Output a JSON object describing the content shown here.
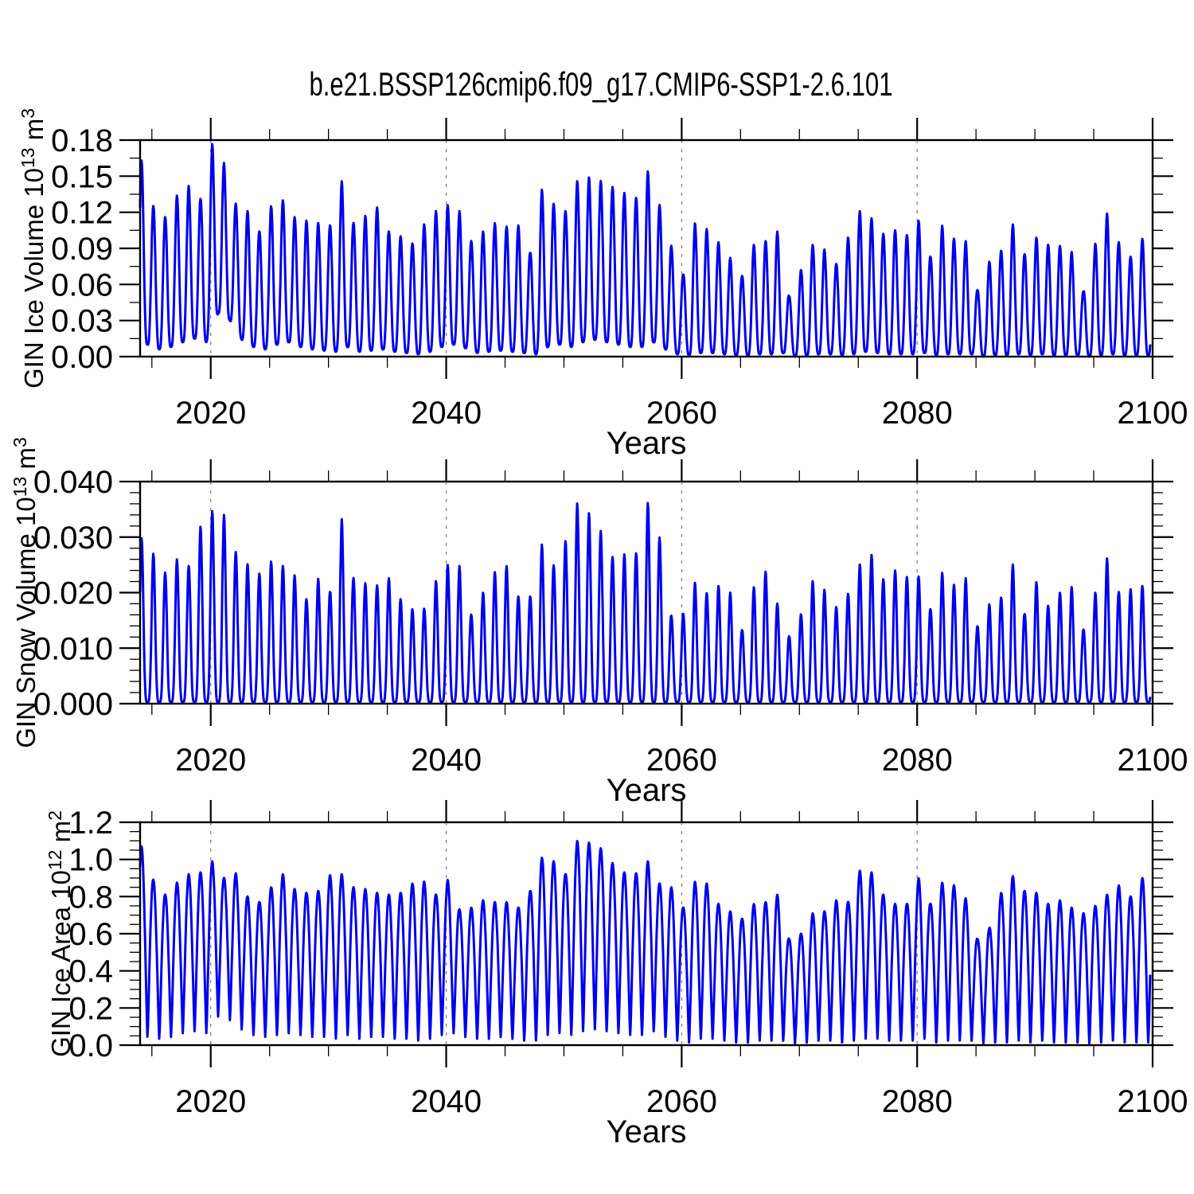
{
  "title": "b.e21.BSSP126cmip6.f09_g17.CMIP6-SSP1-2.6.101",
  "line_color": "#0000ee",
  "grid_color": "#848484",
  "axis_color": "#000000",
  "chart_data": [
    {
      "name": "gin-ice-volume",
      "type": "line",
      "ylabel_parts": [
        {
          "t": "GIN Ice Volume 10"
        },
        {
          "t": "13",
          "sup": true
        },
        {
          "t": " m"
        },
        {
          "t": "3",
          "sup": true
        }
      ],
      "ylabel_text": "GIN Ice Volume 10^13 m^3",
      "xlabel": "Years",
      "xlim": [
        2014,
        2100
      ],
      "ylim": [
        0,
        0.18
      ],
      "ytick_major_step": 0.03,
      "ytick_minor_step": 0.015,
      "ytick_decimals": 2,
      "xtick_major": [
        2020,
        2040,
        2060,
        2080,
        2100
      ],
      "xtick_minor_step": 5,
      "grid_x": [
        2020,
        2040,
        2060,
        2080
      ],
      "legend": "none",
      "start_year": 2014,
      "end_time": 2099.8,
      "season": {
        "peak_frac": 0.13,
        "sharpness": 1.7
      },
      "annual_max": [
        0.163,
        0.125,
        0.116,
        0.134,
        0.142,
        0.131,
        0.177,
        0.161,
        0.127,
        0.121,
        0.104,
        0.125,
        0.13,
        0.116,
        0.113,
        0.111,
        0.109,
        0.146,
        0.111,
        0.117,
        0.124,
        0.104,
        0.1,
        0.094,
        0.11,
        0.121,
        0.126,
        0.121,
        0.096,
        0.104,
        0.111,
        0.108,
        0.109,
        0.086,
        0.139,
        0.127,
        0.121,
        0.146,
        0.149,
        0.146,
        0.141,
        0.136,
        0.132,
        0.154,
        0.126,
        0.092,
        0.068,
        0.111,
        0.106,
        0.095,
        0.082,
        0.067,
        0.093,
        0.096,
        0.104,
        0.05,
        0.072,
        0.093,
        0.089,
        0.077,
        0.099,
        0.121,
        0.115,
        0.102,
        0.105,
        0.101,
        0.113,
        0.083,
        0.109,
        0.098,
        0.096,
        0.055,
        0.079,
        0.088,
        0.11,
        0.085,
        0.099,
        0.093,
        0.092,
        0.087,
        0.054,
        0.094,
        0.119,
        0.095,
        0.083,
        0.098
      ],
      "annual_min": [
        0.01,
        0.006,
        0.008,
        0.012,
        0.015,
        0.012,
        0.036,
        0.03,
        0.014,
        0.008,
        0.006,
        0.01,
        0.012,
        0.008,
        0.006,
        0.005,
        0.004,
        0.008,
        0.004,
        0.005,
        0.006,
        0.004,
        0.003,
        0.002,
        0.004,
        0.008,
        0.01,
        0.007,
        0.003,
        0.004,
        0.005,
        0.004,
        0.003,
        0.002,
        0.008,
        0.01,
        0.008,
        0.012,
        0.014,
        0.012,
        0.01,
        0.008,
        0.008,
        0.012,
        0.006,
        0.002,
        0.001,
        0.003,
        0.003,
        0.002,
        0.001,
        0.001,
        0.002,
        0.002,
        0.003,
        0.0,
        0.001,
        0.002,
        0.002,
        0.001,
        0.002,
        0.004,
        0.003,
        0.002,
        0.002,
        0.002,
        0.003,
        0.001,
        0.002,
        0.002,
        0.002,
        0.0,
        0.001,
        0.001,
        0.002,
        0.001,
        0.002,
        0.001,
        0.001,
        0.001,
        0.0,
        0.001,
        0.002,
        0.001,
        0.001,
        0.001
      ]
    },
    {
      "name": "gin-snow-volume",
      "type": "line",
      "ylabel_parts": [
        {
          "t": "GIN Snow Volume 10"
        },
        {
          "t": "13",
          "sup": true
        },
        {
          "t": " m"
        },
        {
          "t": "3",
          "sup": true
        }
      ],
      "ylabel_text": "GIN Snow Volume 10^13 m^3",
      "xlabel": "Years",
      "xlim": [
        2014,
        2100
      ],
      "ylim": [
        0,
        0.04
      ],
      "ytick_major_step": 0.01,
      "ytick_minor_step": 0.002,
      "ytick_decimals": 3,
      "xtick_major": [
        2020,
        2040,
        2060,
        2080,
        2100
      ],
      "xtick_minor_step": 5,
      "grid_x": [
        2020,
        2040,
        2060,
        2080
      ],
      "legend": "none",
      "start_year": 2014,
      "end_time": 2099.8,
      "season": {
        "peak_frac": 0.13,
        "sharpness": 2.3
      },
      "annual_max": [
        0.0298,
        0.027,
        0.0236,
        0.026,
        0.0248,
        0.0319,
        0.0347,
        0.034,
        0.0273,
        0.0251,
        0.0234,
        0.0256,
        0.0248,
        0.0231,
        0.0188,
        0.0225,
        0.0201,
        0.0333,
        0.0226,
        0.0217,
        0.0213,
        0.0226,
        0.0188,
        0.017,
        0.0171,
        0.0221,
        0.025,
        0.0248,
        0.016,
        0.02,
        0.0237,
        0.0248,
        0.0193,
        0.0193,
        0.0287,
        0.0249,
        0.0293,
        0.0361,
        0.0343,
        0.0311,
        0.0264,
        0.0269,
        0.0271,
        0.0362,
        0.0299,
        0.0158,
        0.0162,
        0.0218,
        0.0199,
        0.0212,
        0.02,
        0.0132,
        0.021,
        0.0238,
        0.018,
        0.0121,
        0.0161,
        0.0221,
        0.0205,
        0.0174,
        0.0198,
        0.0251,
        0.0268,
        0.0224,
        0.024,
        0.0228,
        0.0229,
        0.017,
        0.0236,
        0.0214,
        0.0226,
        0.0139,
        0.0179,
        0.0191,
        0.0251,
        0.0161,
        0.0219,
        0.0176,
        0.02,
        0.021,
        0.0133,
        0.02,
        0.0262,
        0.0201,
        0.0206,
        0.0212
      ],
      "annual_min": 0.0003
    },
    {
      "name": "gin-ice-area",
      "type": "line",
      "ylabel_parts": [
        {
          "t": "GIN Ice Area 10"
        },
        {
          "t": "12",
          "sup": true
        },
        {
          "t": " m"
        },
        {
          "t": "2",
          "sup": true
        }
      ],
      "ylabel_text": "GIN Ice Area 10^12 m^2",
      "xlabel": "Years",
      "xlim": [
        2014,
        2100
      ],
      "ylim": [
        0,
        1.2
      ],
      "ytick_major_step": 0.2,
      "ytick_minor_step": 0.05,
      "ytick_decimals": 1,
      "xtick_major": [
        2020,
        2040,
        2060,
        2080,
        2100
      ],
      "xtick_minor_step": 5,
      "grid_x": [
        2020,
        2040,
        2060,
        2080
      ],
      "legend": "none",
      "start_year": 2014,
      "end_time": 2099.8,
      "season": {
        "peak_frac": 0.13,
        "sharpness": 0.62
      },
      "annual_max": [
        1.07,
        0.89,
        0.81,
        0.875,
        0.92,
        0.93,
        0.99,
        0.9,
        0.925,
        0.8,
        0.77,
        0.85,
        0.92,
        0.84,
        0.82,
        0.83,
        0.915,
        0.92,
        0.85,
        0.84,
        0.82,
        0.81,
        0.82,
        0.87,
        0.88,
        0.81,
        0.89,
        0.73,
        0.74,
        0.78,
        0.77,
        0.77,
        0.74,
        0.83,
        1.01,
        0.99,
        0.92,
        1.1,
        1.09,
        1.06,
        0.98,
        0.93,
        0.925,
        0.99,
        0.87,
        0.85,
        0.74,
        0.88,
        0.87,
        0.76,
        0.72,
        0.68,
        0.76,
        0.77,
        0.81,
        0.57,
        0.6,
        0.71,
        0.72,
        0.78,
        0.77,
        0.94,
        0.93,
        0.81,
        0.76,
        0.76,
        0.9,
        0.76,
        0.875,
        0.86,
        0.79,
        0.57,
        0.63,
        0.82,
        0.91,
        0.83,
        0.82,
        0.76,
        0.78,
        0.74,
        0.71,
        0.75,
        0.81,
        0.86,
        0.8,
        0.9
      ],
      "annual_min": [
        0.04,
        0.03,
        0.04,
        0.06,
        0.07,
        0.06,
        0.15,
        0.13,
        0.08,
        0.05,
        0.04,
        0.05,
        0.06,
        0.05,
        0.04,
        0.04,
        0.03,
        0.05,
        0.03,
        0.04,
        0.04,
        0.03,
        0.03,
        0.02,
        0.03,
        0.05,
        0.06,
        0.04,
        0.03,
        0.03,
        0.04,
        0.03,
        0.02,
        0.02,
        0.05,
        0.06,
        0.05,
        0.07,
        0.08,
        0.07,
        0.06,
        0.05,
        0.05,
        0.07,
        0.04,
        0.02,
        0.01,
        0.03,
        0.03,
        0.02,
        0.01,
        0.01,
        0.02,
        0.02,
        0.02,
        0.005,
        0.01,
        0.02,
        0.02,
        0.01,
        0.02,
        0.03,
        0.03,
        0.02,
        0.02,
        0.02,
        0.03,
        0.01,
        0.02,
        0.02,
        0.02,
        0.005,
        0.01,
        0.01,
        0.02,
        0.01,
        0.02,
        0.01,
        0.01,
        0.01,
        0.005,
        0.01,
        0.02,
        0.01,
        0.01,
        0.01
      ]
    }
  ]
}
